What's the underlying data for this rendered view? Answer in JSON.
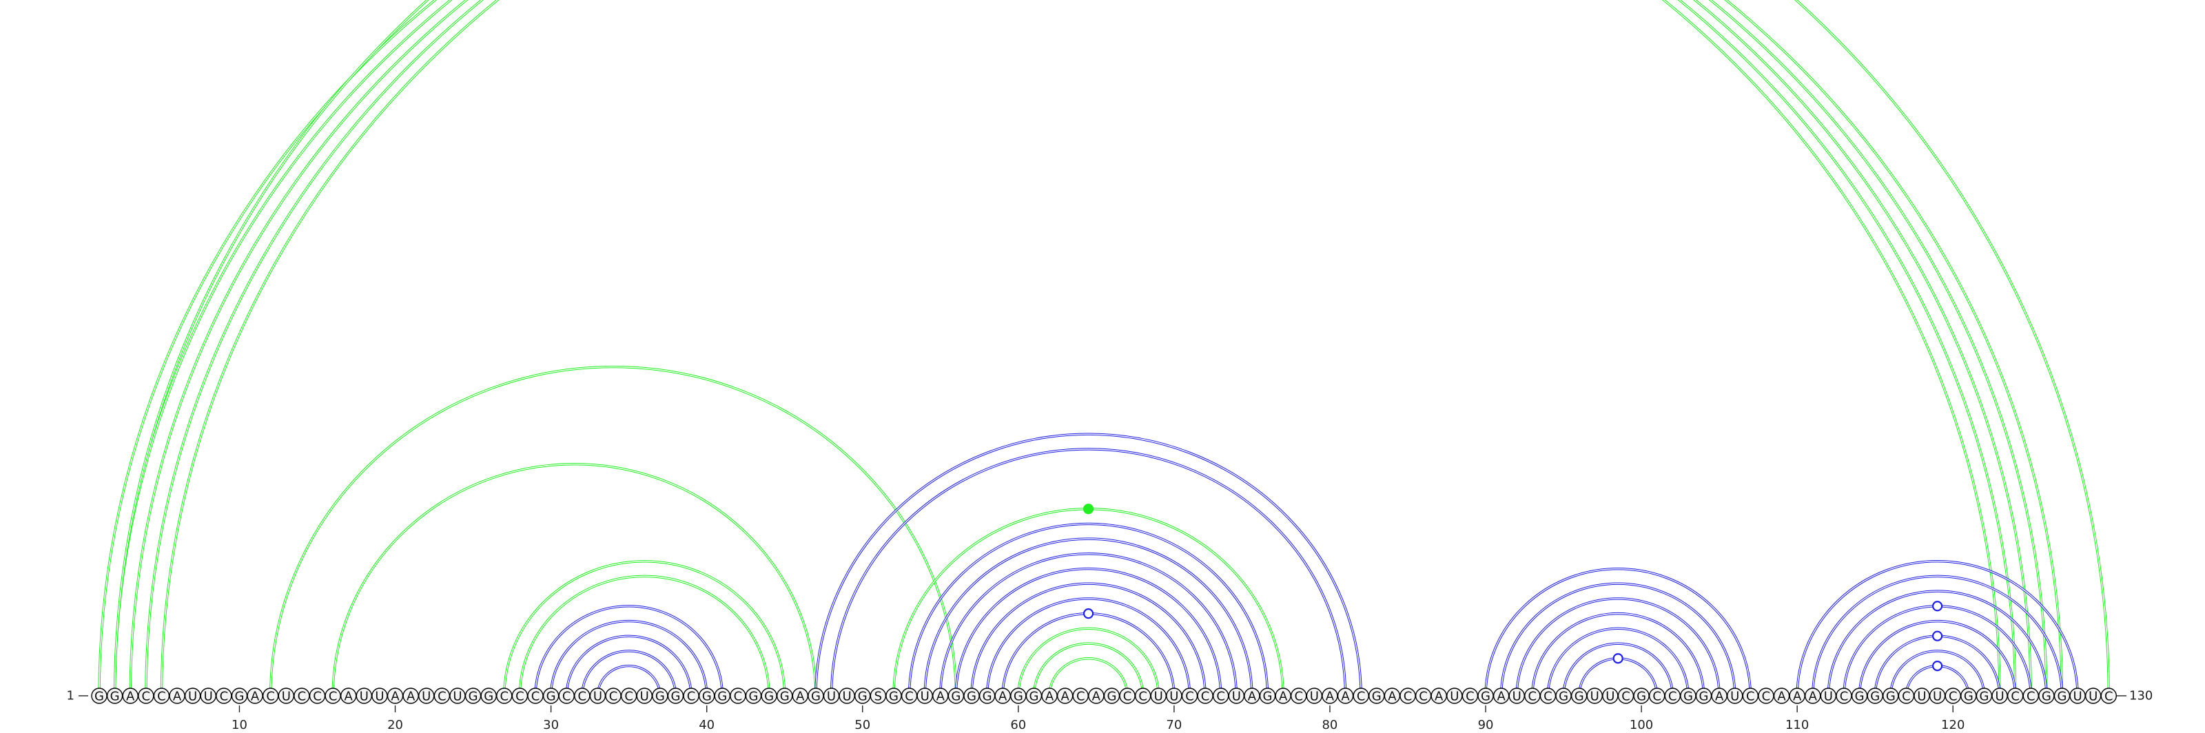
{
  "sequence": "GGACCAUUCGACUCCCAUUAAUCUGGCCCGCCUCCUGGCGGCGGGAGUUGSGCUAGGGAGGAACAGCCUUCCCUAGACUAACGACCAUCGAUCCGGUUCGCCGGAUCCAAAUCGGGCUUCGGUCCGGUUC",
  "start_label": "1",
  "end_label": "130",
  "ticks": [
    "10",
    "20",
    "30",
    "40",
    "50",
    "60",
    "70",
    "80",
    "90",
    "100",
    "110",
    "120"
  ],
  "colors": {
    "pair": "#22ee22",
    "alt": "#1f1fe0"
  },
  "arcs": [
    [
      1,
      123,
      "green"
    ],
    [
      2,
      124,
      "green"
    ],
    [
      3,
      125,
      "green"
    ],
    [
      4,
      126,
      "green"
    ],
    [
      5,
      127,
      "green"
    ],
    [
      2,
      130,
      "green"
    ],
    [
      12,
      56,
      "green"
    ],
    [
      16,
      47,
      "green"
    ],
    [
      27,
      45,
      "green"
    ],
    [
      28,
      44,
      "green"
    ],
    [
      29,
      41,
      "blue"
    ],
    [
      30,
      40,
      "blue"
    ],
    [
      31,
      39,
      "blue"
    ],
    [
      32,
      38,
      "blue"
    ],
    [
      33,
      37,
      "blue"
    ],
    [
      47,
      82,
      "blue"
    ],
    [
      48,
      81,
      "blue"
    ],
    [
      52,
      77,
      "green"
    ],
    [
      53,
      76,
      "blue"
    ],
    [
      54,
      75,
      "blue"
    ],
    [
      55,
      74,
      "blue"
    ],
    [
      56,
      73,
      "blue"
    ],
    [
      57,
      72,
      "blue"
    ],
    [
      58,
      71,
      "blue"
    ],
    [
      59,
      70,
      "blue"
    ],
    [
      60,
      69,
      "green"
    ],
    [
      61,
      68,
      "green"
    ],
    [
      62,
      67,
      "green"
    ],
    [
      90,
      107,
      "blue"
    ],
    [
      91,
      106,
      "blue"
    ],
    [
      92,
      105,
      "blue"
    ],
    [
      93,
      104,
      "blue"
    ],
    [
      94,
      103,
      "blue"
    ],
    [
      95,
      102,
      "blue"
    ],
    [
      96,
      101,
      "blue"
    ],
    [
      110,
      128,
      "blue"
    ],
    [
      111,
      127,
      "blue"
    ],
    [
      112,
      126,
      "blue"
    ],
    [
      113,
      125,
      "blue"
    ],
    [
      114,
      124,
      "blue"
    ],
    [
      115,
      123,
      "blue"
    ],
    [
      116,
      122,
      "blue"
    ],
    [
      117,
      121,
      "blue"
    ]
  ],
  "markers": [
    [
      2,
      130,
      "green",
      "open"
    ],
    [
      52,
      77,
      "green",
      "filled"
    ],
    [
      59,
      70,
      "blue",
      "open"
    ],
    [
      96,
      101,
      "blue",
      "open"
    ],
    [
      113,
      125,
      "blue",
      "open"
    ],
    [
      115,
      123,
      "blue",
      "open"
    ],
    [
      117,
      121,
      "blue",
      "open"
    ]
  ]
}
